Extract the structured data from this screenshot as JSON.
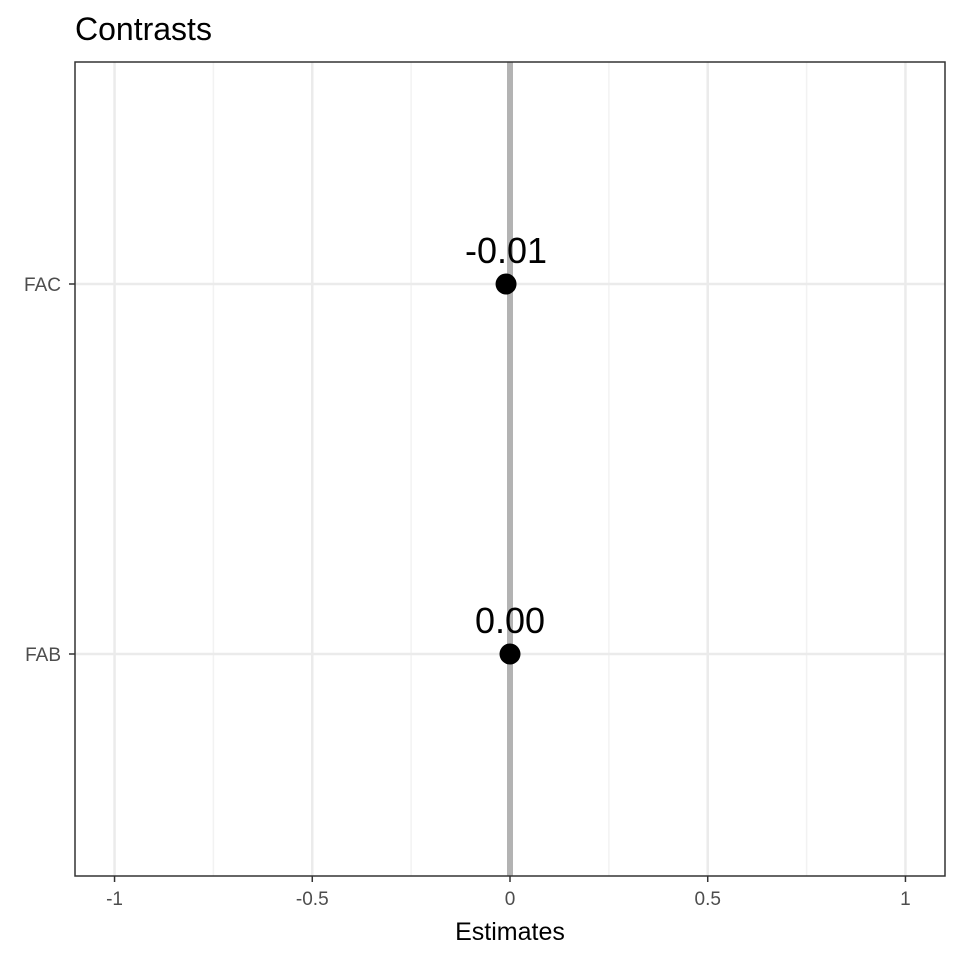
{
  "chart_data": {
    "type": "scatter",
    "title": "Contrasts",
    "xlabel": "Estimates",
    "ylabel": "",
    "xlim": [
      -1.1,
      1.1
    ],
    "x_ticks": [
      -1,
      -0.5,
      0,
      0.5,
      1
    ],
    "x_tick_labels": [
      "-1",
      "-0.5",
      "0",
      "0.5",
      "1"
    ],
    "categories": [
      "FAB",
      "FAC"
    ],
    "points": [
      {
        "category": "FAC",
        "x": -0.01,
        "label": "-0.01"
      },
      {
        "category": "FAB",
        "x": 0.0,
        "label": "0.00"
      }
    ],
    "reference_line_x": 0,
    "grid": true,
    "legend": "none",
    "colors": {
      "point": "#000000",
      "reference_line": "#b3b3b3",
      "grid_major": "#ebebeb",
      "grid_minor": "#f2f2f2",
      "panel_border": "#333333"
    }
  }
}
